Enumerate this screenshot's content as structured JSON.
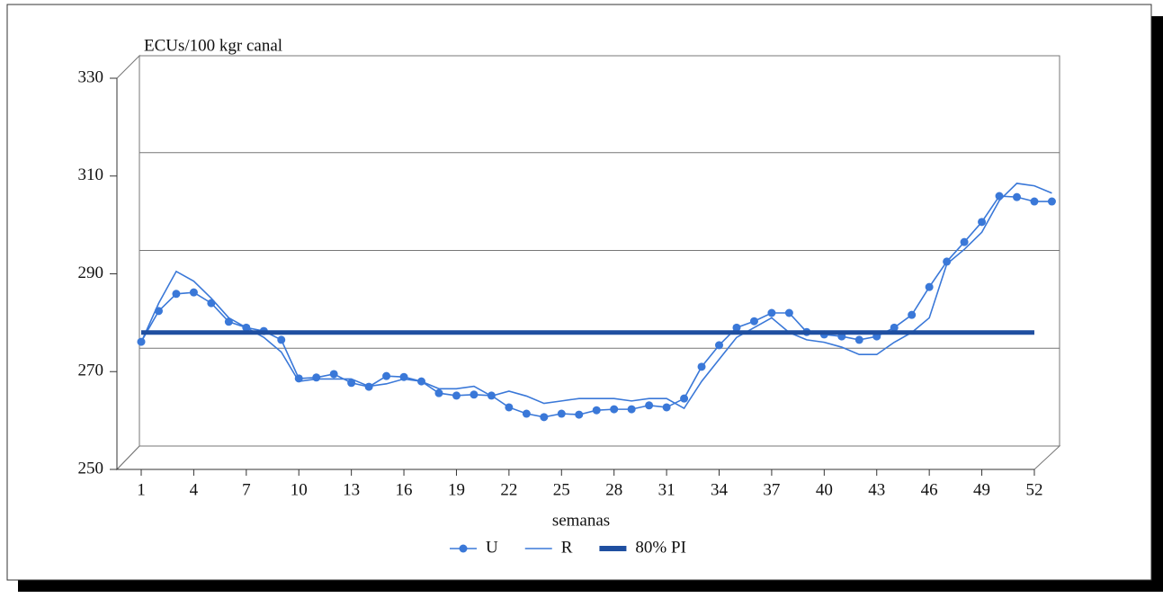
{
  "chart_data": {
    "type": "line",
    "y_label": "ECUs/100 kgr canal",
    "x_label": "semanas",
    "categories": [
      "1",
      null,
      null,
      "4",
      null,
      null,
      "7",
      null,
      null,
      "10",
      null,
      null,
      "13",
      null,
      null,
      "16",
      null,
      null,
      "19",
      null,
      null,
      "22",
      null,
      null,
      "25",
      null,
      null,
      "28",
      null,
      null,
      "31",
      null,
      null,
      "34",
      null,
      null,
      "37",
      null,
      null,
      "40",
      null,
      null,
      "43",
      null,
      null,
      "46",
      null,
      null,
      "49",
      null,
      null,
      "52",
      null
    ],
    "ylim": [
      250,
      330
    ],
    "yticks": [
      250,
      270,
      290,
      310,
      330
    ],
    "grid": true,
    "legend": "bottom",
    "series": [
      {
        "name": "U",
        "color": "#3a78d8",
        "marker": true,
        "values": [
          276.1,
          282.4,
          285.9,
          286.2,
          284,
          280.2,
          279,
          278.3,
          276.5,
          268.6,
          268.8,
          269.5,
          267.7,
          266.9,
          269.1,
          268.9,
          268,
          265.6,
          265.1,
          265.3,
          265.1,
          262.7,
          261.4,
          260.7,
          261.4,
          261.2,
          262.1,
          262.3,
          262.3,
          263.1,
          262.7,
          264.5,
          271,
          275.4,
          279,
          280.3,
          282,
          282,
          278.1,
          277.6,
          277.2,
          276.5,
          277.2,
          279,
          281.6,
          287.3,
          292.5,
          296.5,
          300.6,
          305.9,
          305.7,
          304.8,
          304.8
        ]
      },
      {
        "name": "R",
        "color": "#3a78d8",
        "marker": false,
        "values": [
          276,
          284,
          290.5,
          288.5,
          285,
          281,
          279,
          277,
          274,
          268,
          268.5,
          268.5,
          268.5,
          267,
          267.5,
          268.5,
          268,
          266.5,
          266.5,
          267,
          265,
          266,
          265,
          263.5,
          264,
          264.5,
          264.5,
          264.5,
          264,
          264.5,
          264.5,
          262.5,
          268,
          272.5,
          277,
          279,
          281,
          278,
          276.5,
          276,
          275,
          273.5,
          273.5,
          276,
          278,
          281,
          292,
          295,
          298.5,
          305,
          308.5,
          308,
          306.5
        ]
      },
      {
        "name": "80% PI",
        "color": "#1f4fa0",
        "marker": false,
        "width": 5,
        "values": [
          278,
          278,
          278,
          278,
          278,
          278,
          278,
          278,
          278,
          278,
          278,
          278,
          278,
          278,
          278,
          278,
          278,
          278,
          278,
          278,
          278,
          278,
          278,
          278,
          278,
          278,
          278,
          278,
          278,
          278,
          278,
          278,
          278,
          278,
          278,
          278,
          278,
          278,
          278,
          278,
          278,
          278,
          278,
          278,
          278,
          278,
          278,
          278,
          278,
          278,
          278,
          278,
          null
        ]
      }
    ]
  }
}
